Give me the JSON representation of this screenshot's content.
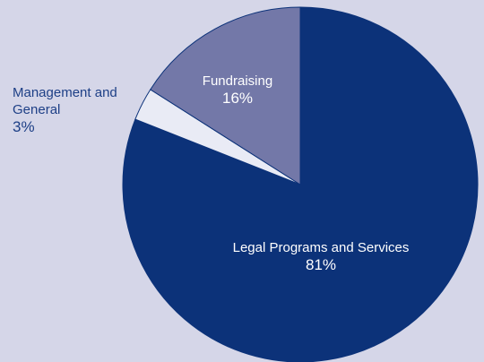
{
  "chart_data": {
    "type": "pie",
    "categories": [
      "Legal Programs and Services",
      "Management and General",
      "Fundraising"
    ],
    "values": [
      81,
      3,
      16
    ],
    "value_labels": [
      "81%",
      "3%",
      "16%"
    ],
    "colors": [
      "#0c3279",
      "#e9ebf5",
      "#7378a8"
    ]
  }
}
